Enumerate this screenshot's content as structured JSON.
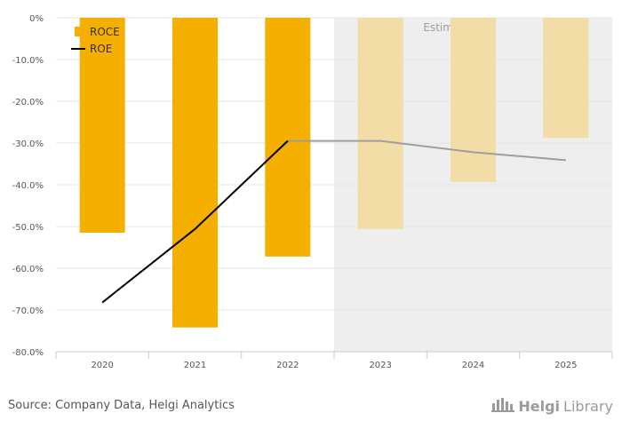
{
  "chart_data": {
    "type": "bar",
    "categories": [
      "2020",
      "2021",
      "2022",
      "2023",
      "2024",
      "2025"
    ],
    "series": [
      {
        "name": "ROCE",
        "type": "bar",
        "values": [
          -51.5,
          -74.2,
          -57.2,
          -50.6,
          -39.3,
          -28.8
        ],
        "color": "#F5AF00"
      },
      {
        "name": "ROE",
        "type": "line",
        "values": [
          -68.2,
          -50.6,
          -29.5,
          -29.5,
          -32.2,
          -34.1
        ],
        "color": "#000000"
      }
    ],
    "estimates_label": "Estimates",
    "estimates_from": "2023",
    "estimate_bar_color": "#F3DDA6",
    "estimate_line_color": "#9E9E9E",
    "ylim": [
      -80,
      0
    ],
    "yticks": [
      0,
      -10,
      -20,
      -30,
      -40,
      -50,
      -60,
      -70,
      -80
    ],
    "ytick_labels": [
      "0%",
      "-10.0%",
      "-20.0%",
      "-30.0%",
      "-40.0%",
      "-50.0%",
      "-60.0%",
      "-70.0%",
      "-80.0%"
    ],
    "grid": true,
    "legend_position": "top-left"
  },
  "footer": {
    "source": "Source: Company Data, Helgi Analytics",
    "logo_part1": "Helgi",
    "logo_part2": "Library",
    "logo_icon": "helgi-library-icon"
  }
}
